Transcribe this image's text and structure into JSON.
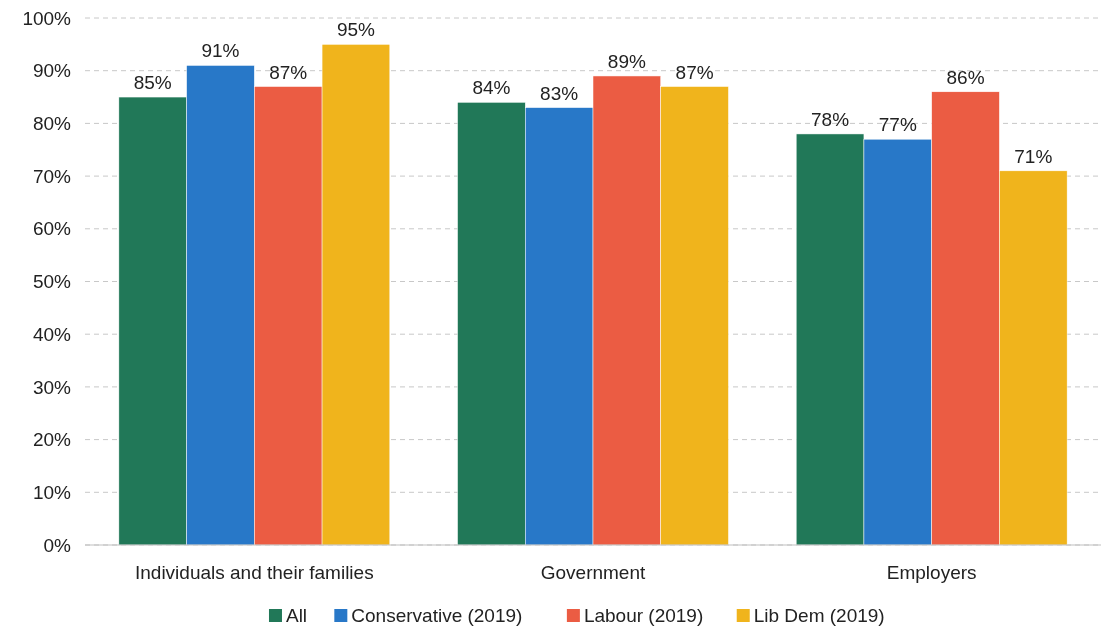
{
  "chart_data": {
    "type": "bar",
    "categories": [
      "Individuals and their families",
      "Government",
      "Employers"
    ],
    "series": [
      {
        "name": "All",
        "color": "#217858",
        "values": [
          85,
          84,
          78
        ],
        "value_labels": [
          "85%",
          "84%",
          "78%"
        ]
      },
      {
        "name": "Conservative (2019)",
        "color": "#2878c8",
        "values": [
          91,
          83,
          77
        ],
        "value_labels": [
          "91%",
          "83%",
          "77%"
        ]
      },
      {
        "name": "Labour (2019)",
        "color": "#eb5c43",
        "values": [
          87,
          89,
          86
        ],
        "value_labels": [
          "87%",
          "89%",
          "86%"
        ]
      },
      {
        "name": "Lib Dem (2019)",
        "color": "#f0b41c",
        "values": [
          95,
          87,
          71
        ],
        "value_labels": [
          "95%",
          "87%",
          "71%"
        ]
      }
    ],
    "ylim": [
      0,
      100
    ],
    "yticks": [
      {
        "value": 0,
        "label": "0%"
      },
      {
        "value": 10,
        "label": "10%"
      },
      {
        "value": 20,
        "label": "20%"
      },
      {
        "value": 30,
        "label": "30%"
      },
      {
        "value": 40,
        "label": "40%"
      },
      {
        "value": 50,
        "label": "50%"
      },
      {
        "value": 60,
        "label": "60%"
      },
      {
        "value": 70,
        "label": "70%"
      },
      {
        "value": 80,
        "label": "80%"
      },
      {
        "value": 90,
        "label": "90%"
      },
      {
        "value": 100,
        "label": "100%"
      }
    ],
    "grid": "y",
    "legend": "bottom"
  }
}
